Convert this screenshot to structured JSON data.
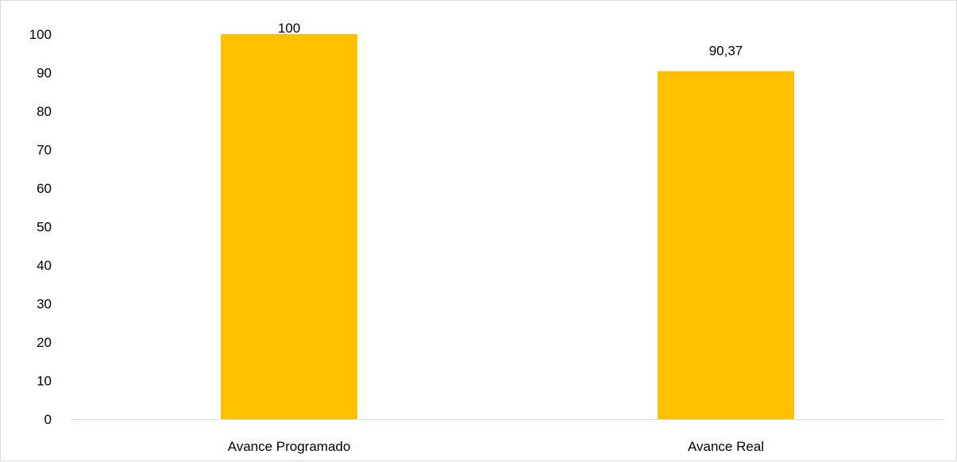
{
  "chart_data": {
    "type": "bar",
    "title": "",
    "xlabel": "",
    "ylabel": "",
    "categories": [
      "Avance Programado",
      "Avance Real"
    ],
    "values": [
      100,
      90.37
    ],
    "data_labels": [
      "100",
      "90,37"
    ],
    "ylim": [
      0,
      100
    ],
    "y_ticks": [
      0,
      10,
      20,
      30,
      40,
      50,
      60,
      70,
      80,
      90,
      100
    ],
    "grid": false,
    "legend": "none",
    "bar_color": "#FFC000"
  }
}
